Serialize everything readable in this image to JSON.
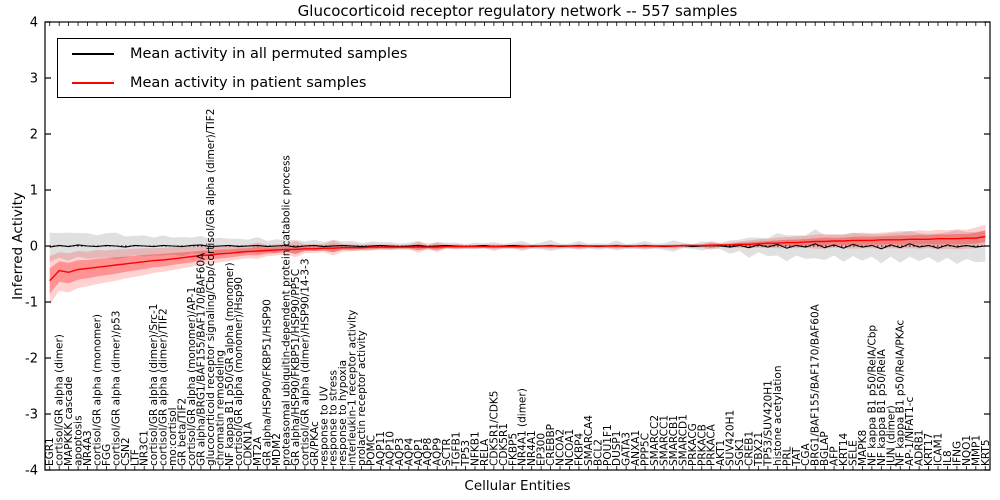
{
  "figure": {
    "title": "Glucocorticoid receptor regulatory network -- 557 samples",
    "ylabel": "Inferred Activity",
    "xlabel": "Cellular Entities"
  },
  "legend": {
    "entries": [
      {
        "label": "Mean activity in all permuted samples",
        "color": "#000000"
      },
      {
        "label": "Mean activity in patient samples",
        "color": "#ff0000"
      }
    ]
  },
  "chart_data": {
    "type": "line",
    "title": "Glucocorticoid receptor regulatory network -- 557 samples",
    "xlabel": "Cellular Entities",
    "ylabel": "Inferred Activity",
    "ylim": [
      -4,
      4
    ],
    "y_ticks": [
      4,
      3,
      2,
      1,
      0,
      -1,
      -2,
      -3,
      -4
    ],
    "grid": false,
    "legend_position": "upper left",
    "zero_line_style": "dotted",
    "colors": {
      "permuted_line": "#000000",
      "permuted_band": "#bbbbbb",
      "patient_line": "#ff0000",
      "patient_band": "#ff0000"
    },
    "categories": [
      "EGR1",
      "cortisol/GR alpha (dimer)",
      "MAPKKK cascade",
      "apoptosis",
      "NR4A3",
      "cortisol/GR alpha (monomer)",
      "FGG",
      "cortisol/GR alpha (dimer)/p53",
      "CSN2",
      "LTF",
      "NR3C1",
      "cortisol/GR alpha (dimer)/Src-1",
      "cortisol/GR alpha (dimer)/TIF2",
      "mo:cortisol",
      "GR beta/TIF2",
      "cortisol/GR alpha (monomer)/AP-1",
      "GR alpha/BRG1/BAF155/BAF170/BAF60A",
      "glucocorticoid receptor signaling/Cbp/cortisol/GR alpha (dimer)/TIF2",
      "chromatin remodeling",
      "NF kappa B1 p50/GR alpha (monomer)",
      "cortisol/GR alpha (monomer)/Hsp90",
      "CDKN1A",
      "MT2A",
      "GR alpha/HSP90/FKBP51/HSP90",
      "MDM2",
      "proteasomal ubiquitin-dependent protein catabolic process",
      "GR alpha/HSP90/FKBP51/HSP90/PP5C",
      "cortisol/GR alpha (dimer)/HSP90/14-3-3",
      "GR/PKAc",
      "response to UV",
      "response to stress",
      "response to hypoxia",
      "interleukin-1 receptor activity",
      "prolactin receptor activity",
      "POMC",
      "AQP11",
      "AQP10",
      "AQP3",
      "AQP4",
      "AQP1",
      "AQP8",
      "AQP9",
      "SCTR",
      "TGFB1",
      "TP53",
      "NFKB1",
      "RELA",
      "CDK5R1/CDK5",
      "CDK5R1",
      "FKBP5",
      "NR4A1 (dimer)",
      "NR4A1",
      "EP300",
      "CREBBP",
      "NCOA2",
      "NCOA1",
      "FKBP4",
      "SMARCA4",
      "BCL2",
      "POU1F1",
      "DUSP1",
      "GATA3",
      "ANXA1",
      "PPP5C",
      "SMARCC2",
      "SMARCC1",
      "SMARCB1",
      "SMARCD1",
      "PRKACG",
      "PRKACB",
      "PRKACA",
      "AKT1",
      "SUV420H1",
      "SGK1",
      "CREB1",
      "TBX21",
      "TP53/SUV420H1",
      "histone acetylation",
      "PRL",
      "TAT",
      "CGA",
      "BRG1/BAF155/BAF170/BAF60A",
      "BGLAP",
      "AFP",
      "KRT14",
      "SELE",
      "MAPK8",
      "NF kappa B1 p50/RelA/Cbp",
      "NF kappa B1 p50/RelA",
      "JUN (dimer)",
      "NF kappa B1 p50/RelA/PKAc",
      "AP-1/NFAT1-c",
      "ADRB1",
      "KRT17",
      "ICAM1",
      "IL8",
      "IFNG",
      "NQO1",
      "MMP1",
      "KRT5"
    ],
    "series": [
      {
        "name": "Mean activity in all permuted samples",
        "values": [
          -0.02,
          0.01,
          -0.01,
          0.02,
          0.0,
          -0.01,
          0.01,
          0.0,
          -0.02,
          0.01,
          0.0,
          -0.01,
          0.01,
          0.0,
          -0.01,
          0.01,
          0.02,
          -0.01,
          0.0,
          0.01,
          -0.01,
          0.0,
          0.01,
          -0.01,
          0.0,
          0.01,
          -0.02,
          0.0,
          0.01,
          -0.01,
          0.0,
          0.01,
          0.0,
          -0.01,
          0.0,
          0.01,
          0.0,
          -0.01,
          0.0,
          0.01,
          -0.01,
          0.0,
          0.01,
          0.0,
          -0.01,
          0.0,
          0.01,
          -0.01,
          0.0,
          0.01,
          0.0,
          -0.01,
          0.0,
          0.01,
          -0.01,
          0.0,
          0.01,
          0.0,
          -0.01,
          0.0,
          0.01,
          -0.01,
          0.0,
          0.01,
          0.0,
          -0.01,
          0.0,
          0.01,
          -0.01,
          0.0,
          0.01,
          0.0,
          -0.02,
          0.01,
          -0.03,
          0.02,
          -0.02,
          0.03,
          -0.04,
          0.01,
          -0.02,
          0.04,
          -0.03,
          0.02,
          -0.04,
          0.03,
          -0.02,
          0.01,
          -0.05,
          0.02,
          -0.03,
          0.04,
          -0.02,
          0.01,
          -0.04,
          0.02,
          -0.02,
          0.01,
          -0.02,
          0.0
        ]
      },
      {
        "name": "Mean activity in patient samples",
        "values": [
          -0.62,
          -0.44,
          -0.47,
          -0.42,
          -0.4,
          -0.38,
          -0.36,
          -0.34,
          -0.32,
          -0.3,
          -0.28,
          -0.26,
          -0.25,
          -0.23,
          -0.21,
          -0.19,
          -0.17,
          -0.16,
          -0.14,
          -0.13,
          -0.11,
          -0.1,
          -0.09,
          -0.08,
          -0.07,
          -0.06,
          -0.06,
          -0.05,
          -0.05,
          -0.04,
          -0.04,
          -0.03,
          -0.03,
          -0.03,
          -0.02,
          -0.02,
          -0.02,
          -0.02,
          -0.02,
          -0.02,
          -0.02,
          -0.02,
          -0.01,
          -0.01,
          -0.01,
          -0.01,
          -0.01,
          -0.01,
          -0.01,
          -0.01,
          -0.01,
          0.0,
          0.0,
          0.0,
          0.0,
          0.0,
          0.0,
          0.0,
          0.0,
          0.0,
          0.0,
          0.0,
          0.0,
          0.0,
          0.0,
          0.0,
          0.0,
          0.01,
          0.01,
          0.01,
          0.01,
          0.02,
          0.02,
          0.03,
          0.03,
          0.04,
          0.05,
          0.05,
          0.06,
          0.06,
          0.07,
          0.08,
          0.08,
          0.09,
          0.09,
          0.1,
          0.1,
          0.1,
          0.11,
          0.11,
          0.11,
          0.12,
          0.12,
          0.12,
          0.13,
          0.13,
          0.13,
          0.14,
          0.14,
          0.17
        ]
      }
    ],
    "permuted_band_halfwidth": [
      0.26,
      0.22,
      0.25,
      0.21,
      0.23,
      0.2,
      0.22,
      0.24,
      0.19,
      0.17,
      0.19,
      0.16,
      0.18,
      0.15,
      0.17,
      0.14,
      0.16,
      0.13,
      0.15,
      0.12,
      0.14,
      0.11,
      0.15,
      0.1,
      0.12,
      0.09,
      0.13,
      0.08,
      0.1,
      0.08,
      0.11,
      0.07,
      0.09,
      0.06,
      0.08,
      0.06,
      0.07,
      0.05,
      0.06,
      0.08,
      0.05,
      0.07,
      0.05,
      0.06,
      0.04,
      0.06,
      0.04,
      0.08,
      0.04,
      0.05,
      0.09,
      0.04,
      0.06,
      0.1,
      0.05,
      0.04,
      0.08,
      0.04,
      0.06,
      0.04,
      0.09,
      0.04,
      0.05,
      0.08,
      0.04,
      0.06,
      0.1,
      0.05,
      0.04,
      0.08,
      0.05,
      0.06,
      0.12,
      0.1,
      0.18,
      0.13,
      0.16,
      0.2,
      0.23,
      0.18,
      0.21,
      0.26,
      0.22,
      0.19,
      0.24,
      0.21,
      0.24,
      0.2,
      0.26,
      0.21,
      0.27,
      0.23,
      0.25,
      0.21,
      0.26,
      0.23,
      0.3,
      0.24,
      0.27,
      0.28
    ],
    "patient_band_upper": [
      -0.18,
      -0.11,
      -0.13,
      -0.09,
      -0.1,
      -0.07,
      -0.08,
      -0.06,
      -0.06,
      -0.05,
      -0.04,
      -0.04,
      -0.03,
      -0.02,
      -0.02,
      -0.01,
      0.0,
      0.0,
      0.01,
      0.01,
      0.02,
      0.02,
      0.06,
      0.02,
      0.03,
      0.03,
      0.09,
      0.03,
      0.03,
      0.03,
      0.1,
      0.03,
      0.03,
      0.02,
      0.03,
      0.02,
      0.03,
      0.02,
      0.02,
      0.08,
      0.02,
      0.07,
      0.02,
      0.03,
      0.02,
      0.02,
      0.02,
      0.03,
      0.02,
      0.02,
      0.03,
      0.02,
      0.02,
      0.03,
      0.02,
      0.02,
      0.03,
      0.02,
      0.02,
      0.02,
      0.03,
      0.02,
      0.02,
      0.03,
      0.02,
      0.02,
      0.03,
      0.03,
      0.03,
      0.03,
      0.09,
      0.04,
      0.06,
      0.08,
      0.1,
      0.12,
      0.13,
      0.15,
      0.16,
      0.17,
      0.18,
      0.2,
      0.22,
      0.2,
      0.21,
      0.23,
      0.24,
      0.23,
      0.24,
      0.25,
      0.27,
      0.26,
      0.28,
      0.27,
      0.29,
      0.28,
      0.3,
      0.29,
      0.33,
      0.38
    ],
    "patient_band_lower": [
      -1.05,
      -0.8,
      -0.83,
      -0.75,
      -0.72,
      -0.68,
      -0.65,
      -0.62,
      -0.58,
      -0.55,
      -0.52,
      -0.48,
      -0.46,
      -0.43,
      -0.4,
      -0.37,
      -0.34,
      -0.32,
      -0.29,
      -0.27,
      -0.24,
      -0.22,
      -0.23,
      -0.18,
      -0.17,
      -0.15,
      -0.2,
      -0.13,
      -0.12,
      -0.11,
      -0.17,
      -0.1,
      -0.09,
      -0.08,
      -0.08,
      -0.07,
      -0.07,
      -0.06,
      -0.06,
      -0.12,
      -0.06,
      -0.11,
      -0.05,
      -0.06,
      -0.05,
      -0.05,
      -0.05,
      -0.06,
      -0.05,
      -0.05,
      -0.06,
      -0.04,
      -0.04,
      -0.05,
      -0.04,
      -0.04,
      -0.05,
      -0.04,
      -0.04,
      -0.04,
      -0.05,
      -0.04,
      -0.04,
      -0.05,
      -0.04,
      -0.04,
      -0.05,
      -0.03,
      -0.03,
      -0.03,
      -0.07,
      -0.02,
      -0.03,
      -0.03,
      -0.04,
      -0.03,
      -0.03,
      -0.04,
      -0.04,
      -0.04,
      -0.03,
      -0.05,
      -0.05,
      -0.03,
      -0.04,
      -0.05,
      -0.04,
      -0.04,
      -0.05,
      -0.04,
      -0.05,
      -0.04,
      -0.05,
      -0.04,
      -0.06,
      -0.05,
      -0.06,
      -0.05,
      -0.04,
      0.0
    ]
  }
}
